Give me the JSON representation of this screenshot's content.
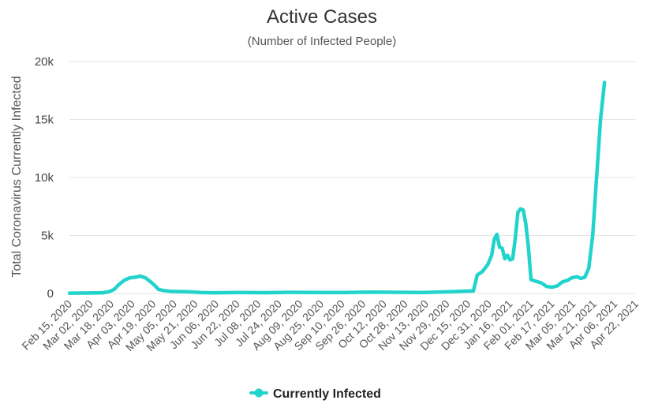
{
  "chart_data": {
    "type": "line",
    "title": "Active Cases",
    "subtitle": "(Number of Infected People)",
    "ylabel": "Total Coronavirus Currently Infected",
    "xlabel": "",
    "ylim": [
      0,
      20000
    ],
    "y_ticks": [
      {
        "value": 0,
        "label": "0"
      },
      {
        "value": 5000,
        "label": "5k"
      },
      {
        "value": 10000,
        "label": "10k"
      },
      {
        "value": 15000,
        "label": "15k"
      },
      {
        "value": 20000,
        "label": "20k"
      }
    ],
    "x_start": "2020-02-15",
    "x_end": "2021-04-27",
    "x_ticks": [
      {
        "day": 0,
        "label": "Feb 15, 2020"
      },
      {
        "day": 16,
        "label": "Mar 02, 2020"
      },
      {
        "day": 32,
        "label": "Mar 18, 2020"
      },
      {
        "day": 48,
        "label": "Apr 03, 2020"
      },
      {
        "day": 64,
        "label": "Apr 19, 2020"
      },
      {
        "day": 80,
        "label": "May 05, 2020"
      },
      {
        "day": 96,
        "label": "May 21, 2020"
      },
      {
        "day": 112,
        "label": "Jun 06, 2020"
      },
      {
        "day": 128,
        "label": "Jun 22, 2020"
      },
      {
        "day": 144,
        "label": "Jul 08, 2020"
      },
      {
        "day": 160,
        "label": "Jul 24, 2020"
      },
      {
        "day": 176,
        "label": "Aug 09, 2020"
      },
      {
        "day": 192,
        "label": "Aug 25, 2020"
      },
      {
        "day": 208,
        "label": "Sep 10, 2020"
      },
      {
        "day": 224,
        "label": "Sep 26, 2020"
      },
      {
        "day": 240,
        "label": "Oct 12, 2020"
      },
      {
        "day": 256,
        "label": "Oct 28, 2020"
      },
      {
        "day": 272,
        "label": "Nov 13, 2020"
      },
      {
        "day": 288,
        "label": "Nov 29, 2020"
      },
      {
        "day": 304,
        "label": "Dec 15, 2020"
      },
      {
        "day": 320,
        "label": "Dec 31, 2020"
      },
      {
        "day": 336,
        "label": "Jan 16, 2021"
      },
      {
        "day": 352,
        "label": "Feb 01, 2021"
      },
      {
        "day": 368,
        "label": "Feb 17, 2021"
      },
      {
        "day": 384,
        "label": "Mar 05, 2021"
      },
      {
        "day": 400,
        "label": "Mar 21, 2021"
      },
      {
        "day": 416,
        "label": "Apr 06, 2021"
      },
      {
        "day": 432,
        "label": "Apr 22, 2021"
      }
    ],
    "series": [
      {
        "name": "Currently Infected",
        "color": "#20d4cc",
        "x_unit": "days since Feb 15, 2020",
        "points": [
          [
            0,
            30
          ],
          [
            15,
            40
          ],
          [
            25,
            60
          ],
          [
            30,
            150
          ],
          [
            34,
            350
          ],
          [
            38,
            800
          ],
          [
            42,
            1150
          ],
          [
            46,
            1350
          ],
          [
            50,
            1400
          ],
          [
            54,
            1500
          ],
          [
            58,
            1350
          ],
          [
            62,
            1000
          ],
          [
            65,
            700
          ],
          [
            68,
            350
          ],
          [
            72,
            250
          ],
          [
            78,
            180
          ],
          [
            90,
            150
          ],
          [
            100,
            90
          ],
          [
            110,
            60
          ],
          [
            130,
            80
          ],
          [
            150,
            70
          ],
          [
            170,
            100
          ],
          [
            190,
            90
          ],
          [
            210,
            80
          ],
          [
            230,
            120
          ],
          [
            250,
            100
          ],
          [
            270,
            90
          ],
          [
            290,
            150
          ],
          [
            300,
            200
          ],
          [
            308,
            220
          ],
          [
            311,
            1600
          ],
          [
            315,
            1900
          ],
          [
            319,
            2500
          ],
          [
            322,
            3300
          ],
          [
            324,
            4700
          ],
          [
            326,
            5100
          ],
          [
            328,
            4000
          ],
          [
            330,
            3900
          ],
          [
            332,
            3000
          ],
          [
            334,
            3300
          ],
          [
            336,
            2900
          ],
          [
            338,
            3000
          ],
          [
            340,
            4800
          ],
          [
            342,
            7000
          ],
          [
            344,
            7300
          ],
          [
            346,
            7200
          ],
          [
            348,
            6000
          ],
          [
            350,
            4000
          ],
          [
            352,
            1200
          ],
          [
            356,
            1050
          ],
          [
            360,
            900
          ],
          [
            364,
            600
          ],
          [
            368,
            550
          ],
          [
            372,
            650
          ],
          [
            376,
            1000
          ],
          [
            380,
            1150
          ],
          [
            383,
            1350
          ],
          [
            387,
            1450
          ],
          [
            390,
            1300
          ],
          [
            393,
            1400
          ],
          [
            396,
            2200
          ],
          [
            399,
            5000
          ],
          [
            402,
            10000
          ],
          [
            405,
            15000
          ],
          [
            408,
            18200
          ]
        ]
      }
    ],
    "legend": {
      "position": "bottom-center",
      "label": "Currently Infected"
    }
  }
}
